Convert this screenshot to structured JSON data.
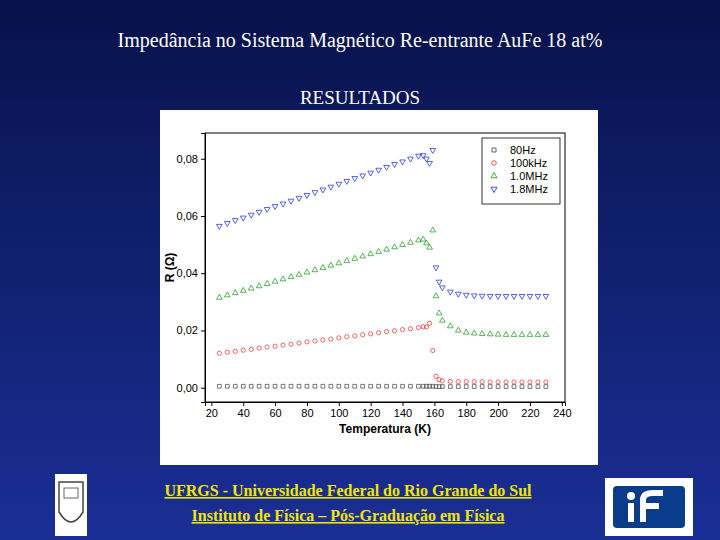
{
  "slide": {
    "title": "Impedância no Sistema Magnético Re-entrante AuFe 18 at%",
    "subtitle": "RESULTADOS",
    "footer": [
      "UFRGS - Universidade Federal do Rio Grande do Sul",
      "Instituto de Física – Pós-Graduação em Física"
    ]
  },
  "chart_data": {
    "type": "scatter",
    "x_label": "Temperatura (K)",
    "y_label": "R (Ω)",
    "x": [
      25,
      30,
      35,
      40,
      45,
      50,
      55,
      60,
      65,
      70,
      75,
      80,
      85,
      90,
      95,
      100,
      105,
      110,
      115,
      120,
      125,
      130,
      135,
      140,
      145,
      150,
      153,
      155,
      157,
      159,
      161,
      163,
      165,
      170,
      175,
      180,
      185,
      190,
      195,
      200,
      205,
      210,
      215,
      220,
      225,
      230
    ],
    "series": [
      {
        "name": "80Hz",
        "color": "#555555",
        "marker": "square",
        "values": [
          0.0005,
          0.0005,
          0.0005,
          0.0005,
          0.0005,
          0.0005,
          0.0005,
          0.0005,
          0.0005,
          0.0005,
          0.0005,
          0.0005,
          0.0005,
          0.0005,
          0.0005,
          0.0005,
          0.0005,
          0.0005,
          0.0005,
          0.0005,
          0.0005,
          0.0005,
          0.0005,
          0.0005,
          0.0005,
          0.0005,
          0.0005,
          0.0005,
          0.0005,
          0.0005,
          0.0004,
          0.0004,
          0.0004,
          0.0004,
          0.0004,
          0.0004,
          0.0004,
          0.0004,
          0.0004,
          0.0004,
          0.0004,
          0.0004,
          0.0004,
          0.0004,
          0.0004,
          0.0004
        ]
      },
      {
        "name": "100kHz",
        "color": "#e8403a",
        "marker": "circle",
        "values": [
          0.012,
          0.0124,
          0.0127,
          0.0131,
          0.0134,
          0.0138,
          0.0142,
          0.0145,
          0.0149,
          0.0152,
          0.0156,
          0.016,
          0.0163,
          0.0167,
          0.017,
          0.0174,
          0.0178,
          0.0181,
          0.0185,
          0.0188,
          0.0192,
          0.0196,
          0.0199,
          0.0203,
          0.0206,
          0.021,
          0.0213,
          0.0212,
          0.0225,
          0.013,
          0.004,
          0.0028,
          0.0024,
          0.0022,
          0.0021,
          0.0021,
          0.0021,
          0.0021,
          0.002,
          0.002,
          0.002,
          0.002,
          0.002,
          0.002,
          0.002,
          0.002
        ]
      },
      {
        "name": "1.0MHz",
        "color": "#2ca02c",
        "marker": "triangle",
        "values": [
          0.0315,
          0.0323,
          0.0331,
          0.0339,
          0.0347,
          0.0355,
          0.0363,
          0.0371,
          0.0379,
          0.0387,
          0.0395,
          0.0403,
          0.0411,
          0.0419,
          0.0427,
          0.0435,
          0.0443,
          0.0451,
          0.0459,
          0.0467,
          0.0475,
          0.0483,
          0.0491,
          0.0499,
          0.0507,
          0.0515,
          0.0518,
          0.0505,
          0.049,
          0.055,
          0.032,
          0.026,
          0.0235,
          0.0215,
          0.02,
          0.0193,
          0.019,
          0.0188,
          0.0187,
          0.0186,
          0.0185,
          0.0185,
          0.0185,
          0.0185,
          0.0185,
          0.0185
        ]
      },
      {
        "name": "1.8MHz",
        "color": "#2a3cd8",
        "marker": "triangle-down",
        "values": [
          0.0565,
          0.0575,
          0.0585,
          0.0594,
          0.0604,
          0.0614,
          0.0624,
          0.0634,
          0.0643,
          0.0653,
          0.0663,
          0.0673,
          0.0683,
          0.0692,
          0.0702,
          0.0712,
          0.0722,
          0.0732,
          0.0741,
          0.0751,
          0.0761,
          0.0771,
          0.0781,
          0.079,
          0.08,
          0.081,
          0.0812,
          0.08,
          0.0785,
          0.083,
          0.042,
          0.037,
          0.035,
          0.0335,
          0.0328,
          0.0324,
          0.0322,
          0.0321,
          0.032,
          0.032,
          0.032,
          0.032,
          0.032,
          0.032,
          0.032,
          0.032
        ]
      }
    ],
    "xlim": [
      16,
      242
    ],
    "xticks": [
      20,
      40,
      60,
      80,
      100,
      120,
      140,
      160,
      180,
      200,
      220,
      240
    ],
    "ylim": [
      -0.005,
      0.089
    ],
    "yticks": [
      {
        "value": 0,
        "label": "0,00"
      },
      {
        "value": 0.02,
        "label": "0,02"
      },
      {
        "value": 0.04,
        "label": "0,04"
      },
      {
        "value": 0.06,
        "label": "0,06"
      },
      {
        "value": 0.08,
        "label": "0,08"
      }
    ],
    "legend": "upper right"
  }
}
